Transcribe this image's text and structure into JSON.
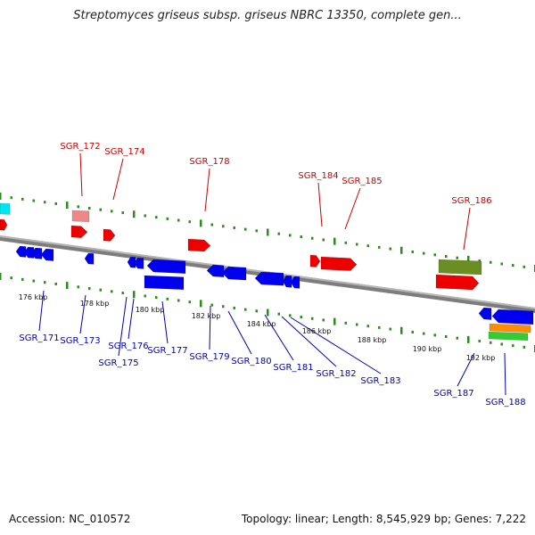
{
  "title": "Streptomyces griseus subsp. griseus NBRC 13350, complete gen...",
  "footer": {
    "accession": "Accession: NC_010572",
    "summary": "Topology: linear; Length: 8,545,929 bp; Genes: 7,222"
  },
  "colors": {
    "backbone": "#888888",
    "tick": "#2e8b1e",
    "forward_label": "#cc0000",
    "reverse_label": "#0000bb",
    "forward_gene": "#ee0000",
    "reverse_gene": "#0000ee",
    "pseudo_gene": "#ee8888",
    "olive_gene": "#6b8e23",
    "orange_gene": "#ff8c00",
    "green_gene": "#33cc33",
    "cyan_gene": "#00e5ee"
  },
  "scale": {
    "kbp_labels": [
      "176 kbp",
      "178 kbp",
      "180 kbp",
      "182 kbp",
      "184 kbp",
      "186 kbp",
      "188 kbp",
      "190 kbp",
      "192 kbp"
    ]
  },
  "forward_labels": [
    "SGR_172",
    "SGR_174",
    "SGR_178",
    "SGR_184",
    "SGR_185",
    "SGR_186"
  ],
  "reverse_labels": [
    "SGR_171",
    "SGR_173",
    "SGR_175",
    "SGR_176",
    "SGR_177",
    "SGR_179",
    "SGR_180",
    "SGR_181",
    "SGR_182",
    "SGR_183",
    "SGR_187",
    "SGR_188"
  ]
}
